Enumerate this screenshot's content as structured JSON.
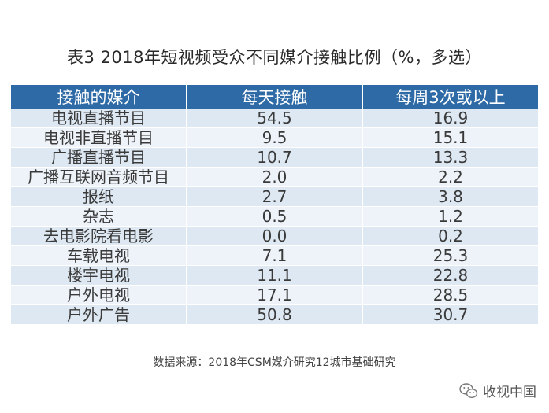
{
  "title": "表3  2018年短视频受众不同媒介接触比例（%，多选）",
  "table": {
    "headers": [
      "接触的媒介",
      "每天接触",
      "每周3次或以上"
    ],
    "rows": [
      {
        "media": "电视直播节目",
        "daily": "54.5",
        "weekly3": "16.9"
      },
      {
        "media": "电视非直播节目",
        "daily": "9.5",
        "weekly3": "15.1"
      },
      {
        "media": "广播直播节目",
        "daily": "10.7",
        "weekly3": "13.3"
      },
      {
        "media": "广播互联网音频节目",
        "daily": "2.0",
        "weekly3": "2.2"
      },
      {
        "media": "报纸",
        "daily": "2.7",
        "weekly3": "3.8"
      },
      {
        "media": "杂志",
        "daily": "0.5",
        "weekly3": "1.2"
      },
      {
        "media": "去电影院看电影",
        "daily": "0.0",
        "weekly3": "0.2"
      },
      {
        "media": "车载电视",
        "daily": "7.1",
        "weekly3": "25.3"
      },
      {
        "media": "楼宇电视",
        "daily": "11.1",
        "weekly3": "22.8"
      },
      {
        "media": "户外电视",
        "daily": "17.1",
        "weekly3": "28.5"
      },
      {
        "media": "户外广告",
        "daily": "50.8",
        "weekly3": "30.7"
      }
    ]
  },
  "source": "数据来源：2018年CSM媒介研究12城市基础研究",
  "watermark": {
    "icon": "wechat-icon",
    "text": "收视中国"
  },
  "colors": {
    "header_bg": "#2e6aa6",
    "row_odd": "#dde8f3",
    "row_even": "#eef3f9"
  }
}
